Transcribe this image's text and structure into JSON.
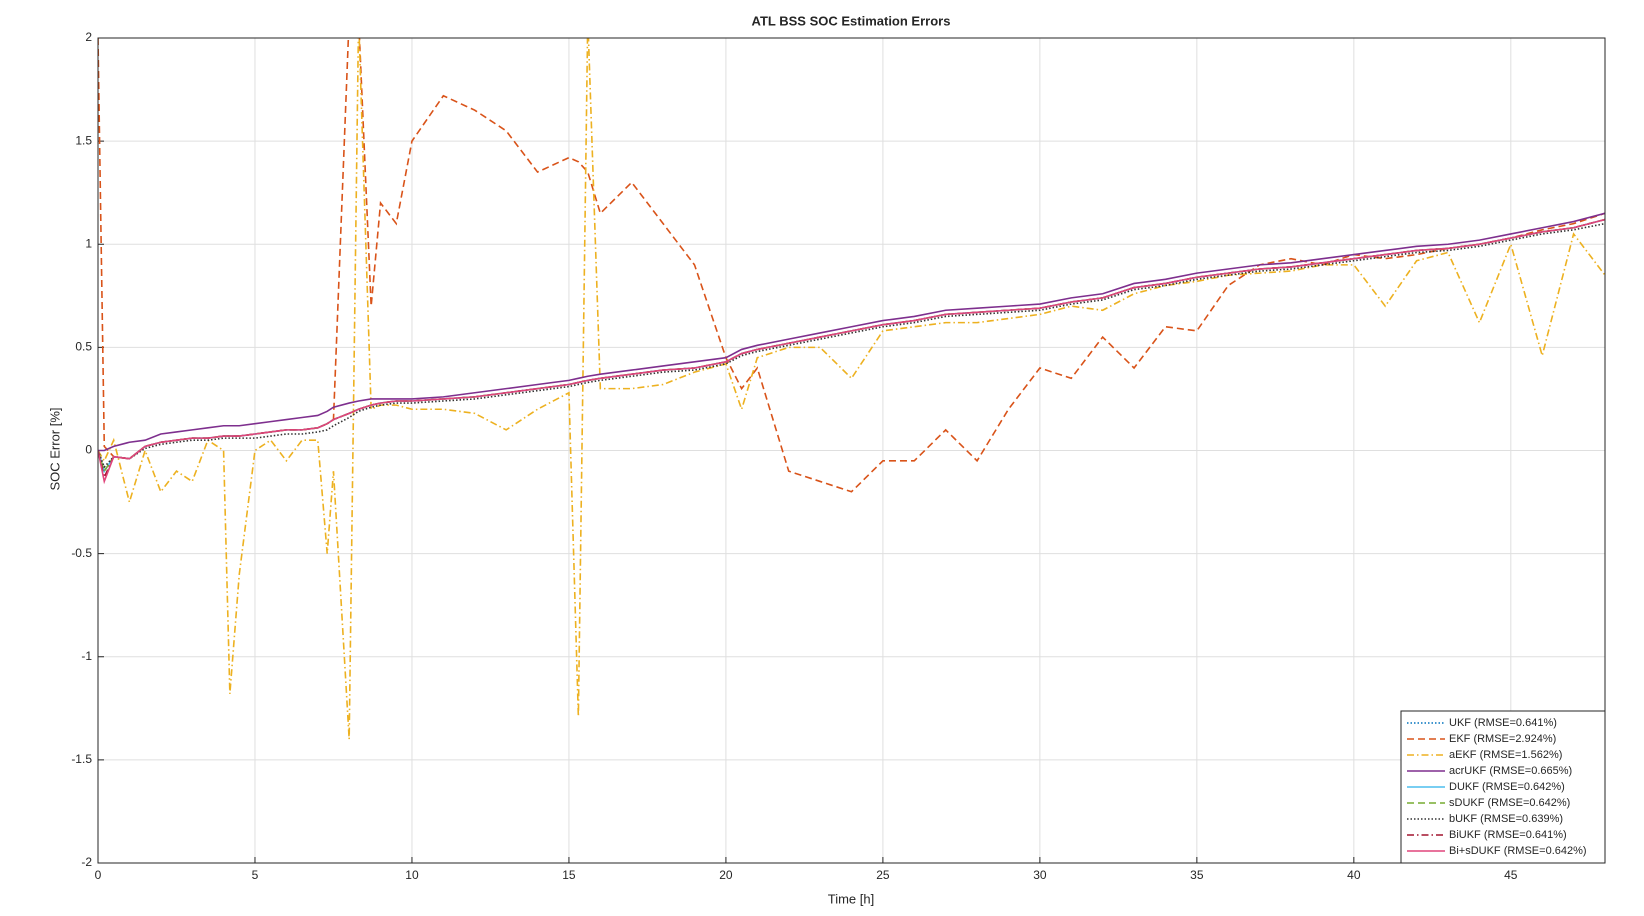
{
  "chart_data": {
    "type": "line",
    "title": "ATL BSS SOC Estimation Errors",
    "x_label": "Time [h]",
    "y_label": "SOC Error [%]",
    "xlim": [
      0,
      48
    ],
    "xticks": [
      0,
      5,
      10,
      15,
      20,
      25,
      30,
      35,
      40,
      45
    ],
    "ylim": [
      -2,
      2
    ],
    "yticks": [
      -2,
      -1.5,
      -1,
      -0.5,
      0,
      0.5,
      1,
      1.5,
      2
    ],
    "grid": true,
    "legend": "bottom-right",
    "x": [
      0,
      0.2,
      0.5,
      1,
      1.5,
      2,
      2.5,
      3,
      3.5,
      4,
      4.2,
      4.5,
      5,
      5.5,
      6,
      6.5,
      7,
      7.3,
      7.5,
      8,
      8.3,
      8.7,
      9,
      9.5,
      10,
      11,
      12,
      13,
      14,
      15,
      15.3,
      15.6,
      16,
      17,
      18,
      19,
      20,
      20.5,
      21,
      22,
      23,
      24,
      25,
      26,
      27,
      28,
      29,
      30,
      31,
      32,
      33,
      34,
      35,
      36,
      37,
      38,
      39,
      40,
      41,
      42,
      43,
      44,
      45,
      46,
      47,
      48
    ],
    "series": [
      {
        "name": "UKF (RMSE=0.641%)",
        "color": "#0072bd",
        "style": "dotted",
        "values": [
          0,
          -0.1,
          -0.03,
          -0.04,
          0.02,
          0.04,
          0.05,
          0.06,
          0.06,
          0.07,
          0.07,
          0.07,
          0.08,
          0.09,
          0.1,
          0.1,
          0.11,
          0.13,
          0.15,
          0.18,
          0.2,
          0.22,
          0.23,
          0.24,
          0.24,
          0.25,
          0.26,
          0.28,
          0.3,
          0.32,
          0.33,
          0.34,
          0.35,
          0.37,
          0.39,
          0.4,
          0.43,
          0.47,
          0.49,
          0.52,
          0.55,
          0.58,
          0.61,
          0.63,
          0.66,
          0.67,
          0.68,
          0.69,
          0.72,
          0.74,
          0.79,
          0.81,
          0.84,
          0.86,
          0.88,
          0.89,
          0.91,
          0.93,
          0.95,
          0.97,
          0.98,
          1.0,
          1.03,
          1.06,
          1.08,
          1.12
        ]
      },
      {
        "name": "EKF (RMSE=2.924%)",
        "color": "#d95319",
        "style": "dashed",
        "values": [
          2,
          0.02,
          -0.03,
          -0.04,
          0.02,
          0.04,
          0.05,
          0.06,
          0.06,
          0.07,
          0.07,
          0.07,
          0.08,
          0.09,
          0.1,
          0.1,
          0.11,
          0.13,
          0.15,
          2.1,
          2.1,
          0.7,
          1.2,
          1.1,
          1.5,
          1.72,
          1.65,
          1.55,
          1.35,
          1.42,
          1.4,
          1.35,
          1.15,
          1.3,
          1.1,
          0.9,
          0.45,
          0.3,
          0.4,
          -0.1,
          -0.15,
          -0.2,
          -0.05,
          -0.05,
          0.1,
          -0.05,
          0.2,
          0.4,
          0.35,
          0.55,
          0.4,
          0.6,
          0.58,
          0.8,
          0.9,
          0.93,
          0.9,
          0.95,
          0.93,
          0.95,
          0.98,
          1.0,
          1.03,
          1.07,
          1.1,
          1.15
        ]
      },
      {
        "name": "aEKF (RMSE=1.562%)",
        "color": "#edb120",
        "style": "dashdot",
        "values": [
          0,
          -0.05,
          0.05,
          -0.25,
          0,
          -0.2,
          -0.1,
          -0.15,
          0.05,
          0,
          -1.18,
          -0.6,
          0,
          0.05,
          -0.05,
          0.05,
          0.05,
          -0.5,
          -0.1,
          -1.4,
          2.1,
          0.2,
          0.22,
          0.22,
          0.2,
          0.2,
          0.18,
          0.1,
          0.2,
          0.28,
          -1.29,
          2.1,
          0.3,
          0.3,
          0.32,
          0.38,
          0.42,
          0.2,
          0.45,
          0.5,
          0.5,
          0.35,
          0.58,
          0.6,
          0.62,
          0.62,
          0.64,
          0.66,
          0.7,
          0.68,
          0.76,
          0.8,
          0.82,
          0.85,
          0.86,
          0.87,
          0.9,
          0.9,
          0.7,
          0.92,
          0.96,
          0.62,
          1.0,
          0.46,
          1.05,
          0.85
        ]
      },
      {
        "name": "acrUKF (RMSE=0.665%)",
        "color": "#7e2f8e",
        "style": "solid",
        "values": [
          0,
          0,
          0.02,
          0.04,
          0.05,
          0.08,
          0.09,
          0.1,
          0.11,
          0.12,
          0.12,
          0.12,
          0.13,
          0.14,
          0.15,
          0.16,
          0.17,
          0.19,
          0.21,
          0.23,
          0.24,
          0.25,
          0.25,
          0.25,
          0.25,
          0.26,
          0.28,
          0.3,
          0.32,
          0.34,
          0.35,
          0.36,
          0.37,
          0.39,
          0.41,
          0.43,
          0.45,
          0.49,
          0.51,
          0.54,
          0.57,
          0.6,
          0.63,
          0.65,
          0.68,
          0.69,
          0.7,
          0.71,
          0.74,
          0.76,
          0.81,
          0.83,
          0.86,
          0.88,
          0.9,
          0.91,
          0.93,
          0.95,
          0.97,
          0.99,
          1.0,
          1.02,
          1.05,
          1.08,
          1.11,
          1.15
        ]
      },
      {
        "name": "DUKF (RMSE=0.642%)",
        "color": "#4dbeee",
        "style": "solid",
        "values": [
          0,
          -0.1,
          -0.03,
          -0.04,
          0.02,
          0.04,
          0.05,
          0.06,
          0.06,
          0.07,
          0.07,
          0.07,
          0.08,
          0.09,
          0.1,
          0.1,
          0.11,
          0.13,
          0.15,
          0.18,
          0.2,
          0.22,
          0.23,
          0.24,
          0.24,
          0.25,
          0.26,
          0.28,
          0.3,
          0.32,
          0.33,
          0.34,
          0.35,
          0.37,
          0.39,
          0.4,
          0.43,
          0.47,
          0.49,
          0.52,
          0.55,
          0.58,
          0.61,
          0.63,
          0.66,
          0.67,
          0.68,
          0.69,
          0.72,
          0.74,
          0.79,
          0.81,
          0.84,
          0.86,
          0.88,
          0.89,
          0.91,
          0.93,
          0.95,
          0.97,
          0.98,
          1.0,
          1.03,
          1.06,
          1.08,
          1.12
        ]
      },
      {
        "name": "sDUKF (RMSE=0.642%)",
        "color": "#77ac30",
        "style": "dashed",
        "values": [
          0,
          -0.1,
          -0.03,
          -0.04,
          0.02,
          0.04,
          0.05,
          0.06,
          0.06,
          0.07,
          0.07,
          0.07,
          0.08,
          0.09,
          0.1,
          0.1,
          0.11,
          0.13,
          0.15,
          0.18,
          0.2,
          0.22,
          0.23,
          0.24,
          0.24,
          0.25,
          0.26,
          0.28,
          0.3,
          0.32,
          0.33,
          0.34,
          0.35,
          0.37,
          0.39,
          0.4,
          0.43,
          0.47,
          0.49,
          0.52,
          0.55,
          0.58,
          0.61,
          0.63,
          0.66,
          0.67,
          0.68,
          0.69,
          0.72,
          0.74,
          0.79,
          0.81,
          0.84,
          0.86,
          0.88,
          0.89,
          0.91,
          0.93,
          0.95,
          0.97,
          0.98,
          1.0,
          1.03,
          1.06,
          1.08,
          1.12
        ]
      },
      {
        "name": "bUKF (RMSE=0.639%)",
        "color": "#333333",
        "style": "dotted",
        "values": [
          0,
          -0.08,
          -0.03,
          -0.04,
          0.01,
          0.03,
          0.04,
          0.05,
          0.05,
          0.06,
          0.06,
          0.06,
          0.06,
          0.07,
          0.08,
          0.08,
          0.09,
          0.1,
          0.12,
          0.16,
          0.19,
          0.21,
          0.22,
          0.23,
          0.23,
          0.24,
          0.25,
          0.27,
          0.29,
          0.31,
          0.32,
          0.33,
          0.34,
          0.36,
          0.38,
          0.39,
          0.42,
          0.46,
          0.48,
          0.51,
          0.54,
          0.57,
          0.6,
          0.62,
          0.65,
          0.66,
          0.67,
          0.68,
          0.71,
          0.73,
          0.78,
          0.8,
          0.83,
          0.85,
          0.87,
          0.88,
          0.9,
          0.92,
          0.94,
          0.96,
          0.97,
          0.99,
          1.02,
          1.05,
          1.07,
          1.1
        ]
      },
      {
        "name": "BiUKF (RMSE=0.641%)",
        "color": "#a2142f",
        "style": "dashdot",
        "values": [
          0,
          -0.13,
          -0.03,
          -0.04,
          0.02,
          0.04,
          0.05,
          0.06,
          0.06,
          0.07,
          0.07,
          0.07,
          0.08,
          0.09,
          0.1,
          0.1,
          0.11,
          0.13,
          0.15,
          0.18,
          0.2,
          0.22,
          0.23,
          0.24,
          0.24,
          0.25,
          0.26,
          0.28,
          0.3,
          0.32,
          0.33,
          0.34,
          0.35,
          0.37,
          0.39,
          0.4,
          0.43,
          0.47,
          0.49,
          0.52,
          0.55,
          0.58,
          0.61,
          0.63,
          0.66,
          0.67,
          0.68,
          0.69,
          0.72,
          0.74,
          0.79,
          0.81,
          0.84,
          0.86,
          0.88,
          0.89,
          0.91,
          0.93,
          0.95,
          0.97,
          0.98,
          1.0,
          1.03,
          1.06,
          1.08,
          1.12
        ]
      },
      {
        "name": "Bi+sDUKF (RMSE=0.642%)",
        "color": "#e0457b",
        "style": "solid",
        "values": [
          0,
          -0.15,
          -0.03,
          -0.04,
          0.02,
          0.04,
          0.05,
          0.06,
          0.06,
          0.07,
          0.07,
          0.07,
          0.08,
          0.09,
          0.1,
          0.1,
          0.11,
          0.13,
          0.15,
          0.18,
          0.2,
          0.22,
          0.23,
          0.24,
          0.24,
          0.25,
          0.26,
          0.28,
          0.3,
          0.32,
          0.33,
          0.34,
          0.35,
          0.37,
          0.39,
          0.4,
          0.43,
          0.47,
          0.49,
          0.52,
          0.55,
          0.58,
          0.61,
          0.63,
          0.66,
          0.67,
          0.68,
          0.69,
          0.72,
          0.74,
          0.79,
          0.81,
          0.84,
          0.86,
          0.88,
          0.89,
          0.91,
          0.93,
          0.95,
          0.97,
          0.98,
          1.0,
          1.03,
          1.06,
          1.08,
          1.12
        ]
      }
    ]
  }
}
